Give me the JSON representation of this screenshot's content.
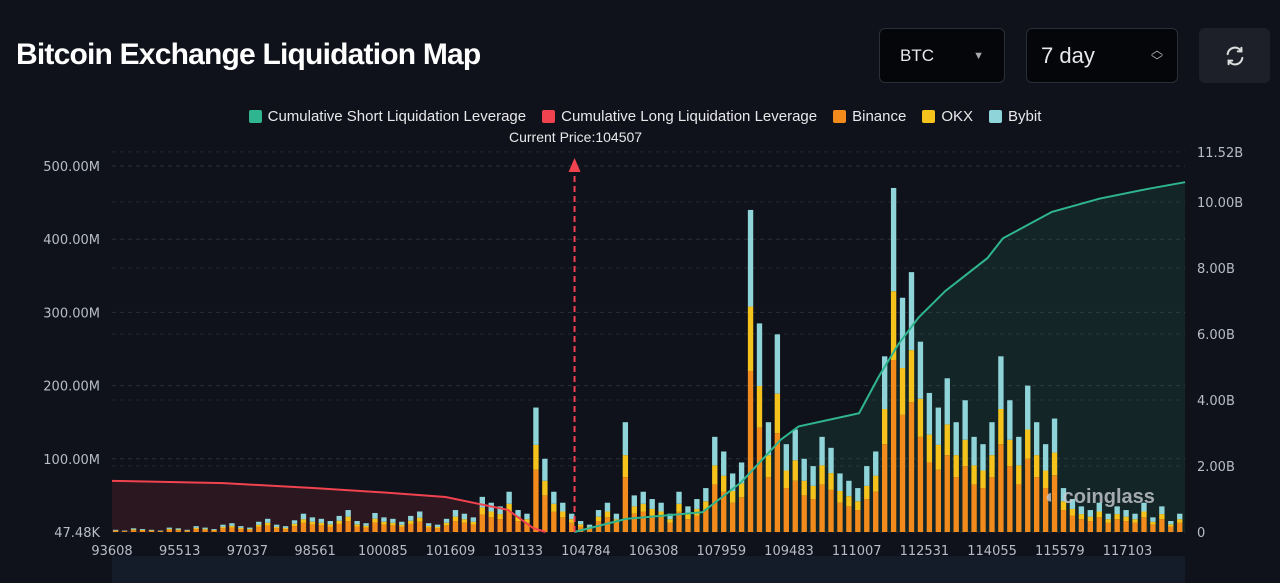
{
  "header": {
    "title": "Bitcoin Exchange Liquidation Map",
    "coin_select": "BTC",
    "period_select": "7 day",
    "refresh_icon": "refresh-icon"
  },
  "legend": [
    {
      "label": "Cumulative Short Liquidation Leverage",
      "color": "#2fb58f"
    },
    {
      "label": "Cumulative Long Liquidation Leverage",
      "color": "#f0434f"
    },
    {
      "label": "Binance",
      "color": "#f28a1c"
    },
    {
      "label": "OKX",
      "color": "#f5c31b"
    },
    {
      "label": "Bybit",
      "color": "#8fd4d8"
    }
  ],
  "current_price_label": "Current Price:104507",
  "watermark": "coinglass",
  "chart_data": {
    "type": "bar",
    "x_tick_labels": [
      "93608",
      "95513",
      "97037",
      "98561",
      "100085",
      "101609",
      "103133",
      "104784",
      "106308",
      "107959",
      "109483",
      "111007",
      "112531",
      "114055",
      "115579",
      "117103"
    ],
    "x_range": [
      93608,
      118400
    ],
    "current_price": 104507,
    "y_left": {
      "tick_labels": [
        "47.48K",
        "100.00M",
        "200.00M",
        "300.00M",
        "400.00M",
        "500.00M"
      ],
      "tick_values": [
        0,
        100,
        200,
        300,
        400,
        500
      ],
      "range": [
        0,
        520
      ],
      "unit": "M"
    },
    "y_right": {
      "tick_labels": [
        "0",
        "2.00B",
        "4.00B",
        "6.00B",
        "8.00B",
        "10.00B",
        "11.52B"
      ],
      "tick_values": [
        0,
        2,
        4,
        6,
        8,
        10,
        11.52
      ],
      "range": [
        0,
        11.52
      ],
      "unit": "B"
    },
    "grid": true,
    "legend_placement": "top",
    "bar_totals_M": [
      3,
      2,
      5,
      4,
      3,
      2,
      6,
      5,
      3,
      8,
      6,
      4,
      10,
      12,
      8,
      6,
      14,
      18,
      10,
      8,
      16,
      25,
      20,
      18,
      15,
      22,
      30,
      15,
      12,
      26,
      20,
      18,
      14,
      22,
      28,
      12,
      10,
      18,
      30,
      25,
      20,
      48,
      40,
      35,
      55,
      30,
      25,
      170,
      100,
      55,
      40,
      25,
      15,
      10,
      30,
      40,
      25,
      150,
      50,
      55,
      45,
      40,
      25,
      55,
      35,
      45,
      60,
      130,
      110,
      80,
      95,
      440,
      285,
      150,
      270,
      120,
      140,
      100,
      90,
      130,
      115,
      80,
      70,
      60,
      90,
      110,
      240,
      470,
      320,
      355,
      260,
      190,
      170,
      210,
      150,
      180,
      130,
      120,
      150,
      240,
      180,
      130,
      200,
      150,
      120,
      155,
      60,
      45,
      35,
      30,
      40,
      25,
      35,
      30,
      25,
      40,
      20,
      35,
      15,
      25
    ],
    "stack_shares": {
      "Binance": 0.5,
      "OKX": 0.2,
      "Bybit": 0.3
    },
    "series": [
      {
        "name": "Cumulative Long Liquidation Leverage",
        "points": [
          [
            93608,
            1.55
          ],
          [
            96500,
            1.48
          ],
          [
            98561,
            1.33
          ],
          [
            100085,
            1.2
          ],
          [
            101500,
            1.06
          ],
          [
            102900,
            0.67
          ],
          [
            103500,
            0.12
          ],
          [
            103800,
            0
          ]
        ]
      },
      {
        "name": "Cumulative Short Liquidation Leverage",
        "points": [
          [
            104500,
            0
          ],
          [
            105700,
            0.4
          ],
          [
            107500,
            0.6
          ],
          [
            108400,
            1.5
          ],
          [
            109300,
            2.8
          ],
          [
            109700,
            3.2
          ],
          [
            111060,
            3.6
          ],
          [
            111500,
            4.7
          ],
          [
            111950,
            5.7
          ],
          [
            112400,
            6.5
          ],
          [
            113000,
            7.3
          ],
          [
            113950,
            8.3
          ],
          [
            114300,
            8.9
          ],
          [
            115400,
            9.7
          ],
          [
            116470,
            10.1
          ],
          [
            117570,
            10.4
          ],
          [
            118400,
            10.6
          ]
        ]
      }
    ]
  }
}
